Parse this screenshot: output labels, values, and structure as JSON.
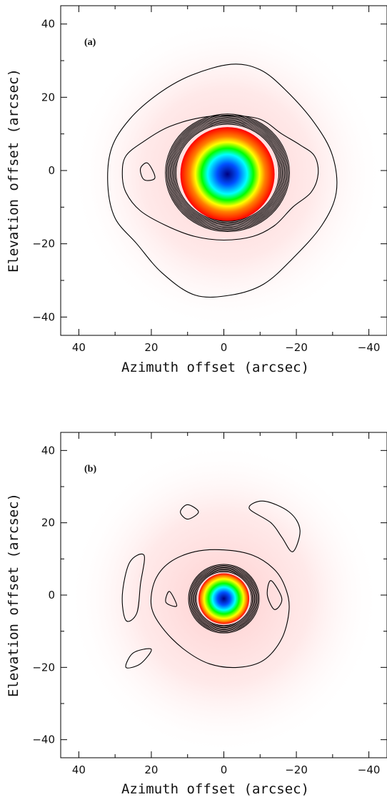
{
  "chart_data": [
    {
      "type": "heatmap",
      "panel_label": "(a)",
      "xlabel": "Azimuth offset (arcsec)",
      "ylabel": "Elevation offset (arcsec)",
      "xlim": [
        45,
        -45
      ],
      "ylim": [
        -45,
        45
      ],
      "xticks": [
        40,
        20,
        0,
        -20,
        -40
      ],
      "yticks": [
        40,
        20,
        0,
        -20,
        -40
      ],
      "x_tick_labels": [
        "40",
        "20",
        "0",
        "−20",
        "−40"
      ],
      "y_tick_labels": [
        "40",
        "20",
        "0",
        "−20",
        "−40"
      ],
      "colormap": [
        "#000080",
        "#0050ff",
        "#00ffff",
        "#00ff00",
        "#ffff00",
        "#ff8000",
        "#ff0000"
      ],
      "peak_center": [
        -1,
        -1
      ],
      "core_radius": 13,
      "outer_contours": [
        [
          [
            -2,
            29
          ],
          [
            -10,
            27.5
          ],
          [
            -17,
            22
          ],
          [
            -25,
            13
          ],
          [
            -30,
            4
          ],
          [
            -31,
            -6
          ],
          [
            -27,
            -15
          ],
          [
            -19,
            -24
          ],
          [
            -11,
            -31
          ],
          [
            -2,
            -34
          ],
          [
            8,
            -34
          ],
          [
            17,
            -28
          ],
          [
            24,
            -20
          ],
          [
            30,
            -13
          ],
          [
            32,
            -4
          ],
          [
            31,
            6
          ],
          [
            26,
            14
          ],
          [
            18,
            21
          ],
          [
            9,
            26
          ]
        ],
        [
          [
            -2,
            15
          ],
          [
            -10,
            14
          ],
          [
            -16,
            10
          ],
          [
            -21,
            7
          ],
          [
            -25,
            4
          ],
          [
            -26,
            -1
          ],
          [
            -24,
            -6
          ],
          [
            -19,
            -10
          ],
          [
            -14,
            -15
          ],
          [
            -8,
            -18
          ],
          [
            0,
            -19
          ],
          [
            8,
            -18
          ],
          [
            16,
            -15
          ],
          [
            23,
            -11
          ],
          [
            27,
            -6
          ],
          [
            28,
            -1
          ],
          [
            27,
            4
          ],
          [
            22,
            8
          ],
          [
            15,
            12
          ],
          [
            6,
            14.5
          ]
        ],
        [
          [
            19,
            -2
          ],
          [
            21,
            2
          ],
          [
            23,
            0.5
          ],
          [
            22,
            -2.5
          ]
        ]
      ]
    },
    {
      "type": "heatmap",
      "panel_label": "(b)",
      "xlabel": "Azimuth offset (arcsec)",
      "ylabel": "Elevation offset (arcsec)",
      "xlim": [
        45,
        -45
      ],
      "ylim": [
        -45,
        45
      ],
      "xticks": [
        40,
        20,
        0,
        -20,
        -40
      ],
      "yticks": [
        40,
        20,
        0,
        -20,
        -40
      ],
      "x_tick_labels": [
        "40",
        "20",
        "0",
        "−20",
        "−40"
      ],
      "y_tick_labels": [
        "40",
        "20",
        "0",
        "−20",
        "−40"
      ],
      "colormap": [
        "#000080",
        "#0050ff",
        "#00ffff",
        "#00ff00",
        "#ffff00",
        "#ff8000",
        "#ff0000"
      ],
      "peak_center": [
        0,
        -1
      ],
      "core_radius": 7,
      "outer_contours": [
        [
          [
            0,
            12.5
          ],
          [
            -8,
            11
          ],
          [
            -14,
            7
          ],
          [
            -17,
            2
          ],
          [
            -18,
            -4
          ],
          [
            -16,
            -12
          ],
          [
            -11,
            -18
          ],
          [
            -4,
            -20
          ],
          [
            4,
            -19
          ],
          [
            11,
            -15
          ],
          [
            17,
            -9
          ],
          [
            20,
            -3
          ],
          [
            19,
            4
          ],
          [
            15,
            9
          ],
          [
            8,
            12
          ]
        ],
        [
          [
            -13,
            4
          ],
          [
            -12,
            0
          ],
          [
            -14,
            -4
          ],
          [
            -16,
            -1
          ]
        ],
        [
          [
            13,
            -3
          ],
          [
            15,
            1
          ],
          [
            16,
            -2
          ]
        ],
        [
          [
            7,
            23
          ],
          [
            10,
            25
          ],
          [
            12,
            23
          ],
          [
            10,
            21
          ]
        ],
        [
          [
            -7,
            24
          ],
          [
            -11,
            26
          ],
          [
            -18,
            23
          ],
          [
            -21,
            18
          ],
          [
            -19,
            12
          ],
          [
            -16,
            16
          ],
          [
            -13,
            20
          ]
        ],
        [
          [
            22,
            11
          ],
          [
            26,
            9
          ],
          [
            28,
            0
          ],
          [
            27,
            -7
          ],
          [
            24,
            -5
          ],
          [
            23,
            3
          ]
        ],
        [
          [
            20,
            -15
          ],
          [
            23,
            -19
          ],
          [
            27,
            -20
          ],
          [
            25,
            -16
          ]
        ]
      ]
    }
  ]
}
